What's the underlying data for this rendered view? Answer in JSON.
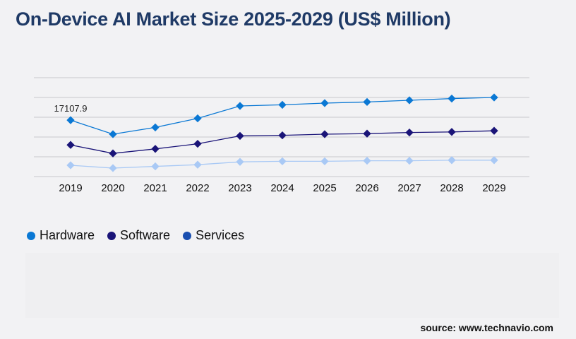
{
  "chart_data": {
    "type": "line",
    "title": "On-Device AI Market Size 2025-2029 (US$ Million)",
    "categories": [
      "2019",
      "2020",
      "2021",
      "2022",
      "2023",
      "2024",
      "2025",
      "2026",
      "2027",
      "2028",
      "2029"
    ],
    "ylim": [
      0,
      30000
    ],
    "grid": true,
    "legend_position": "bottom-left",
    "series": [
      {
        "name": "Hardware",
        "color": "#0a78d4",
        "values": [
          17107.9,
          12860,
          14910,
          17660,
          21430,
          21770,
          22290,
          22630,
          23140,
          23660,
          24000
        ]
      },
      {
        "name": "Software",
        "color": "#1a1478",
        "values": [
          9600,
          7030,
          8400,
          9940,
          12340,
          12510,
          12860,
          13030,
          13370,
          13540,
          13890
        ]
      },
      {
        "name": "Services",
        "color": "#a9c9f5",
        "legend_color": "#1a4fb0",
        "values": [
          3430,
          2570,
          3090,
          3600,
          4460,
          4630,
          4630,
          4800,
          4800,
          4970,
          4970
        ]
      }
    ],
    "annotations": [
      {
        "category": "2019",
        "series": "Hardware",
        "text": "17107.9"
      }
    ]
  },
  "source": "source: www.technavio.com"
}
